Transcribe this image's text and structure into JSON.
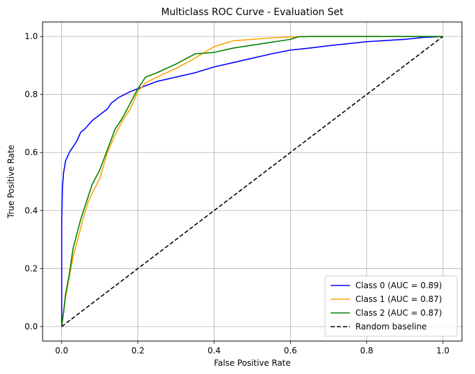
{
  "chart_data": {
    "type": "line",
    "title": "Multiclass ROC Curve - Evaluation Set",
    "xlabel": "False Positive Rate",
    "ylabel": "True Positive Rate",
    "xlim": [
      -0.05,
      1.05
    ],
    "ylim": [
      -0.05,
      1.05
    ],
    "xticks": [
      0.0,
      0.2,
      0.4,
      0.6,
      0.8,
      1.0
    ],
    "yticks": [
      0.0,
      0.2,
      0.4,
      0.6,
      0.8,
      1.0
    ],
    "xtick_labels": [
      "0.0",
      "0.2",
      "0.4",
      "0.6",
      "0.8",
      "1.0"
    ],
    "ytick_labels": [
      "0.0",
      "0.2",
      "0.4",
      "0.6",
      "0.8",
      "1.0"
    ],
    "grid": true,
    "legend_position": "lower-right",
    "series": [
      {
        "name": "Class 0 (AUC = 0.89)",
        "color": "#0000ff",
        "style": "solid",
        "x": [
          0.0,
          0.0,
          0.002,
          0.005,
          0.01,
          0.02,
          0.03,
          0.04,
          0.05,
          0.06,
          0.08,
          0.1,
          0.12,
          0.13,
          0.15,
          0.18,
          0.2,
          0.25,
          0.3,
          0.35,
          0.4,
          0.45,
          0.5,
          0.55,
          0.6,
          0.65,
          0.7,
          0.75,
          0.8,
          0.85,
          0.9,
          0.95,
          1.0
        ],
        "y": [
          0.0,
          0.36,
          0.48,
          0.53,
          0.57,
          0.6,
          0.62,
          0.64,
          0.67,
          0.68,
          0.71,
          0.73,
          0.75,
          0.77,
          0.79,
          0.81,
          0.82,
          0.845,
          0.86,
          0.875,
          0.895,
          0.91,
          0.925,
          0.94,
          0.953,
          0.96,
          0.968,
          0.975,
          0.982,
          0.986,
          0.99,
          0.997,
          1.0
        ]
      },
      {
        "name": "Class 1 (AUC = 0.87)",
        "color": "#ffa500",
        "style": "solid",
        "x": [
          0.0,
          0.005,
          0.01,
          0.02,
          0.03,
          0.04,
          0.05,
          0.06,
          0.07,
          0.08,
          0.1,
          0.12,
          0.14,
          0.16,
          0.18,
          0.2,
          0.22,
          0.25,
          0.3,
          0.35,
          0.38,
          0.4,
          0.45,
          0.5,
          0.55,
          0.6,
          0.65,
          0.7,
          0.8,
          0.9,
          1.0
        ],
        "y": [
          0.0,
          0.05,
          0.1,
          0.17,
          0.24,
          0.29,
          0.34,
          0.39,
          0.43,
          0.46,
          0.51,
          0.6,
          0.66,
          0.71,
          0.75,
          0.81,
          0.84,
          0.86,
          0.89,
          0.925,
          0.95,
          0.965,
          0.985,
          0.99,
          0.995,
          0.998,
          1.0,
          1.0,
          1.0,
          1.0,
          1.0
        ]
      },
      {
        "name": "Class 2 (AUC = 0.87)",
        "color": "#008000",
        "style": "solid",
        "x": [
          0.0,
          0.005,
          0.01,
          0.02,
          0.03,
          0.04,
          0.05,
          0.06,
          0.07,
          0.08,
          0.1,
          0.12,
          0.14,
          0.16,
          0.18,
          0.2,
          0.22,
          0.25,
          0.3,
          0.35,
          0.4,
          0.45,
          0.5,
          0.55,
          0.6,
          0.62,
          0.65,
          0.7,
          0.8,
          0.9,
          1.0
        ],
        "y": [
          0.0,
          0.05,
          0.11,
          0.18,
          0.27,
          0.32,
          0.37,
          0.41,
          0.45,
          0.49,
          0.54,
          0.61,
          0.68,
          0.72,
          0.77,
          0.82,
          0.86,
          0.875,
          0.905,
          0.94,
          0.945,
          0.96,
          0.97,
          0.98,
          0.99,
          0.999,
          1.0,
          1.0,
          1.0,
          1.0,
          1.0
        ]
      },
      {
        "name": "Random baseline",
        "color": "#000000",
        "style": "dashed",
        "x": [
          0.0,
          1.0
        ],
        "y": [
          0.0,
          1.0
        ]
      }
    ]
  }
}
